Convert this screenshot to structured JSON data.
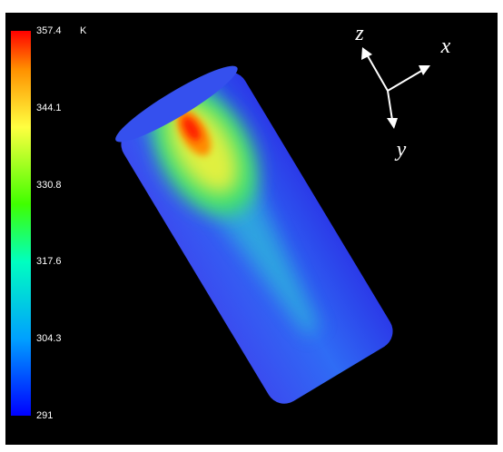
{
  "colorbar": {
    "unit": "K",
    "range": [
      291,
      357.4
    ],
    "ticks": [
      357.4,
      344.1,
      330.8,
      317.6,
      304.3,
      291
    ]
  },
  "axes_triad": {
    "x": "x",
    "y": "y",
    "z": "z"
  }
}
